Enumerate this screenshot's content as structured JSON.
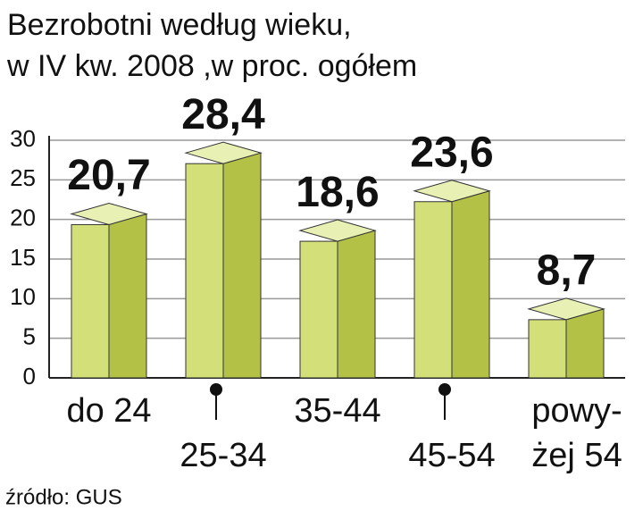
{
  "chart_data": {
    "type": "bar",
    "title": "Bezrobotni według wieku,",
    "subtitle": "w IV kw. 2008 ,w proc. ogółem",
    "source": "źródło: GUS",
    "categories": [
      "do 24",
      "25-34",
      "35-44",
      "45-54",
      "powy-\nżej 54"
    ],
    "values": [
      20.7,
      28.4,
      18.6,
      23.6,
      8.7
    ],
    "value_labels": [
      "20,7",
      "28,4",
      "18,6",
      "23,6",
      "8,7"
    ],
    "color": "#d3df78",
    "ylim": [
      0,
      30
    ],
    "yticks": [
      0,
      5,
      10,
      15,
      20,
      25,
      30
    ],
    "grid": true
  }
}
